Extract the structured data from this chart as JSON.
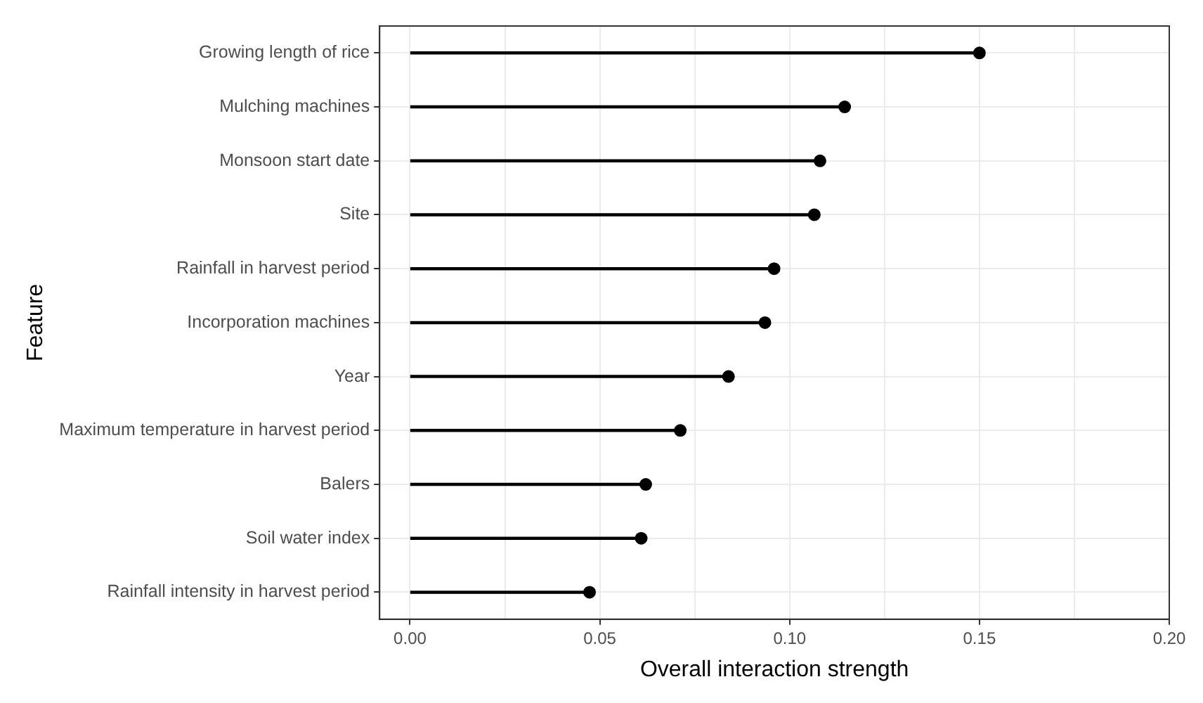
{
  "chart_data": {
    "type": "lollipop",
    "orientation": "horizontal",
    "xlabel": "Overall interaction strength",
    "ylabel": "Feature",
    "categories": [
      "Growing length of rice",
      "Mulching machines",
      "Monsoon start date",
      "Site",
      "Rainfall in harvest period",
      "Incorporation machines",
      "Year",
      "Maximum temperature in harvest period",
      "Balers",
      "Soil water index",
      "Rainfall intensity in harvest period"
    ],
    "values": [
      0.15,
      0.1145,
      0.108,
      0.1065,
      0.0959,
      0.0935,
      0.0839,
      0.0712,
      0.0621,
      0.0609,
      0.0473
    ],
    "color": "#000000",
    "xlim": [
      -0.008,
      0.2
    ],
    "xticks": [
      {
        "value": 0,
        "label": "0.00"
      },
      {
        "value": 0.025,
        "label": null
      },
      {
        "value": 0.05,
        "label": "0.05"
      },
      {
        "value": 0.075,
        "label": null
      },
      {
        "value": 0.1,
        "label": "0.10"
      },
      {
        "value": 0.125,
        "label": null
      },
      {
        "value": 0.15,
        "label": "0.15"
      },
      {
        "value": 0.175,
        "label": null
      },
      {
        "value": 0.2,
        "label": "0.20"
      }
    ],
    "grid": true,
    "legend": false,
    "marker": "circle"
  }
}
